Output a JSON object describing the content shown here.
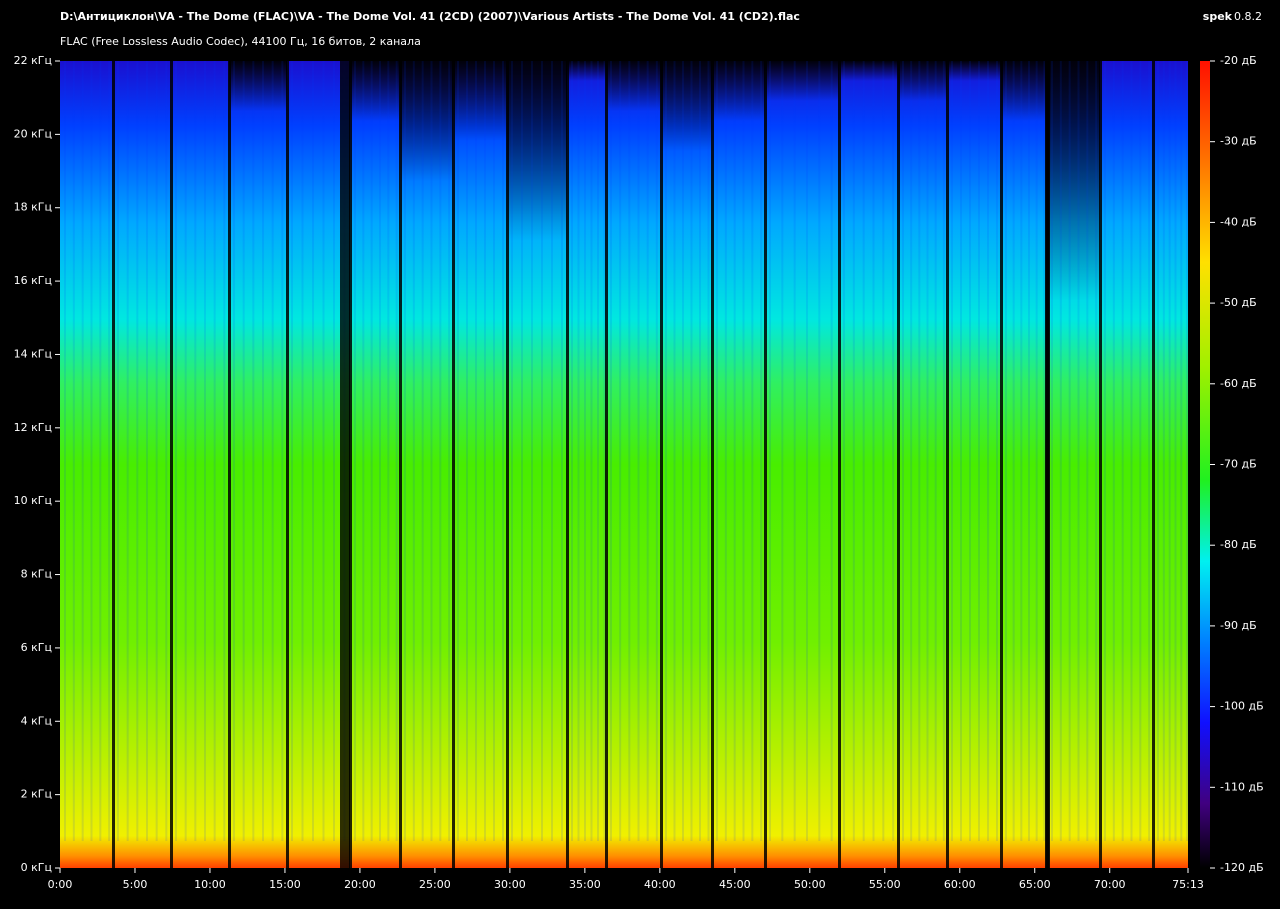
{
  "header": {
    "title": "D:\\Антициклон\\VA - The Dome (FLAC)\\VA - The Dome Vol. 41 (2CD) (2007)\\Various Artists - The Dome Vol. 41 (CD2).flac",
    "app_name": "spek",
    "app_version": "0.8.2",
    "subtitle": "FLAC (Free Lossless Audio Codec), 44100 Гц, 16 битов, 2 канала"
  },
  "frequency_axis": {
    "labels": [
      "0 кГц",
      "2 кГц",
      "4 кГц",
      "6 кГц",
      "8 кГц",
      "10 кГц",
      "12 кГц",
      "14 кГц",
      "16 кГц",
      "18 кГц",
      "20 кГц",
      "22 кГц"
    ]
  },
  "time_axis": {
    "labels": [
      "0:00",
      "5:00",
      "10:00",
      "15:00",
      "20:00",
      "25:00",
      "30:00",
      "35:00",
      "40:00",
      "45:00",
      "50:00",
      "55:00",
      "60:00",
      "65:00",
      "70:00",
      "75:13"
    ]
  },
  "level_scale": {
    "labels": [
      "-20 дБ",
      "-30 дБ",
      "-40 дБ",
      "-50 дБ",
      "-60 дБ",
      "-70 дБ",
      "-80 дБ",
      "-90 дБ",
      "-100 дБ",
      "-110 дБ",
      "-120 дБ"
    ]
  }
}
